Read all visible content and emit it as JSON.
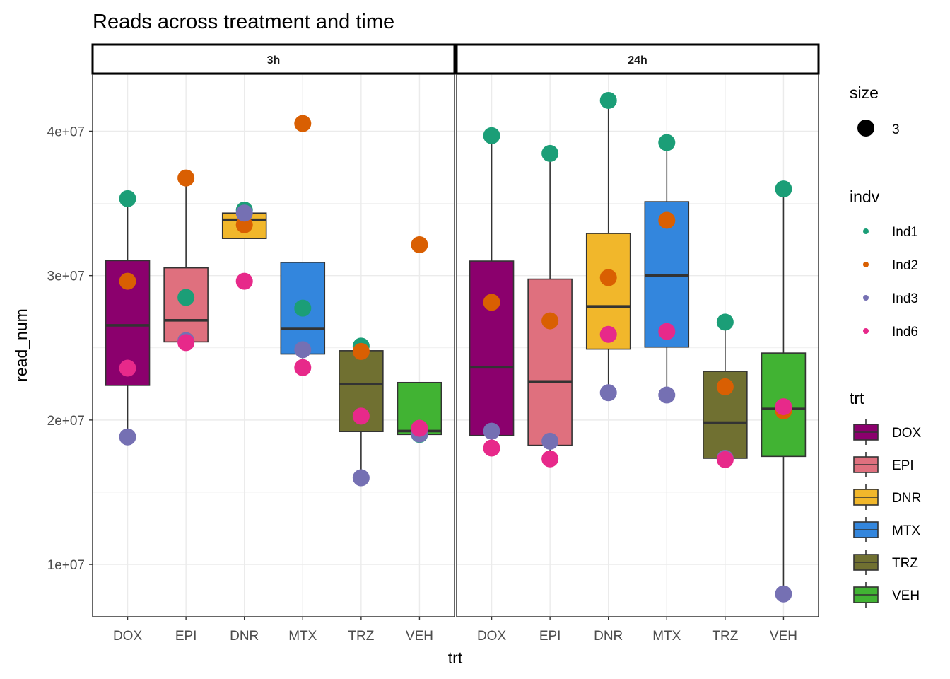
{
  "chart_data": {
    "type": "box",
    "title": "Reads across treatment and time",
    "xlabel": "trt",
    "ylabel": "read_num",
    "ylim": [
      6380000,
      43940000
    ],
    "y_ticks": [
      10000000,
      20000000,
      30000000,
      40000000
    ],
    "y_tick_labels": [
      "1e+07",
      "2e+07",
      "3e+07",
      "4e+07"
    ],
    "y_minor_gridlines": [
      15000000,
      25000000,
      35000000
    ],
    "grid": true,
    "categories": [
      "DOX",
      "EPI",
      "DNR",
      "MTX",
      "TRZ",
      "VEH"
    ],
    "facets": [
      {
        "label": "3h",
        "boxes": [
          {
            "trt": "DOX",
            "q1": 22400000,
            "median": 26560000,
            "q3": 31040000,
            "whisker_low": 18830000,
            "whisker_high": 35330000
          },
          {
            "trt": "EPI",
            "q1": 25410000,
            "median": 26910000,
            "q3": 30540000,
            "whisker_low": 25360000,
            "whisker_high": 36760000
          },
          {
            "trt": "DNR",
            "q1": 32570000,
            "median": 33870000,
            "q3": 34330000,
            "whisker_low": 33520000,
            "whisker_high": 34540000
          },
          {
            "trt": "MTX",
            "q1": 24570000,
            "median": 26310000,
            "q3": 30920000,
            "whisker_low": 23630000,
            "whisker_high": 30920000
          },
          {
            "trt": "TRZ",
            "q1": 19200000,
            "median": 22500000,
            "q3": 24800000,
            "whisker_low": 16000000,
            "whisker_high": 25120000
          },
          {
            "trt": "VEH",
            "q1": 19000000,
            "median": 19240000,
            "q3": 22600000,
            "whisker_low": 19000000,
            "whisker_high": 22600000
          }
        ],
        "points": [
          {
            "trt": "DOX",
            "indv": "Ind1",
            "value": 35330000
          },
          {
            "trt": "DOX",
            "indv": "Ind2",
            "value": 29610000
          },
          {
            "trt": "DOX",
            "indv": "Ind3",
            "value": 18830000
          },
          {
            "trt": "DOX",
            "indv": "Ind6",
            "value": 23590000
          },
          {
            "trt": "EPI",
            "indv": "Ind1",
            "value": 28490000
          },
          {
            "trt": "EPI",
            "indv": "Ind2",
            "value": 36760000
          },
          {
            "trt": "EPI",
            "indv": "Ind3",
            "value": 25500000
          },
          {
            "trt": "EPI",
            "indv": "Ind6",
            "value": 25360000
          },
          {
            "trt": "DNR",
            "indv": "Ind1",
            "value": 34540000
          },
          {
            "trt": "DNR",
            "indv": "Ind2",
            "value": 33520000
          },
          {
            "trt": "DNR",
            "indv": "Ind3",
            "value": 34330000
          },
          {
            "trt": "DNR",
            "indv": "Ind6",
            "value": 29610000
          },
          {
            "trt": "MTX",
            "indv": "Ind1",
            "value": 27750000
          },
          {
            "trt": "MTX",
            "indv": "Ind2",
            "value": 40530000
          },
          {
            "trt": "MTX",
            "indv": "Ind3",
            "value": 24870000
          },
          {
            "trt": "MTX",
            "indv": "Ind6",
            "value": 23630000
          },
          {
            "trt": "TRZ",
            "indv": "Ind1",
            "value": 25120000
          },
          {
            "trt": "TRZ",
            "indv": "Ind2",
            "value": 24750000
          },
          {
            "trt": "TRZ",
            "indv": "Ind3",
            "value": 16000000
          },
          {
            "trt": "TRZ",
            "indv": "Ind6",
            "value": 20270000
          },
          {
            "trt": "VEH",
            "indv": "Ind1",
            "value": 19000000
          },
          {
            "trt": "VEH",
            "indv": "Ind2",
            "value": 32140000
          },
          {
            "trt": "VEH",
            "indv": "Ind3",
            "value": 19030000
          },
          {
            "trt": "VEH",
            "indv": "Ind6",
            "value": 19430000
          }
        ]
      },
      {
        "label": "24h",
        "boxes": [
          {
            "trt": "DOX",
            "q1": 18930000,
            "median": 23650000,
            "q3": 31010000,
            "whisker_low": 18060000,
            "whisker_high": 39690000
          },
          {
            "trt": "EPI",
            "q1": 18250000,
            "median": 22670000,
            "q3": 29760000,
            "whisker_low": 17310000,
            "whisker_high": 38460000
          },
          {
            "trt": "DNR",
            "q1": 24910000,
            "median": 27870000,
            "q3": 32920000,
            "whisker_low": 21890000,
            "whisker_high": 42130000
          },
          {
            "trt": "MTX",
            "q1": 25050000,
            "median": 30000000,
            "q3": 35120000,
            "whisker_low": 21730000,
            "whisker_high": 39210000
          },
          {
            "trt": "TRZ",
            "q1": 17350000,
            "median": 19820000,
            "q3": 23370000,
            "whisker_low": 17260000,
            "whisker_high": 26780000
          },
          {
            "trt": "VEH",
            "q1": 17480000,
            "median": 20770000,
            "q3": 24640000,
            "whisker_low": 7960000,
            "whisker_high": 36000000
          }
        ],
        "points": [
          {
            "trt": "DOX",
            "indv": "Ind1",
            "value": 39690000
          },
          {
            "trt": "DOX",
            "indv": "Ind2",
            "value": 28150000
          },
          {
            "trt": "DOX",
            "indv": "Ind3",
            "value": 19230000
          },
          {
            "trt": "DOX",
            "indv": "Ind6",
            "value": 18060000
          },
          {
            "trt": "EPI",
            "indv": "Ind1",
            "value": 38460000
          },
          {
            "trt": "EPI",
            "indv": "Ind2",
            "value": 26870000
          },
          {
            "trt": "EPI",
            "indv": "Ind3",
            "value": 18530000
          },
          {
            "trt": "EPI",
            "indv": "Ind6",
            "value": 17310000
          },
          {
            "trt": "DNR",
            "indv": "Ind1",
            "value": 42130000
          },
          {
            "trt": "DNR",
            "indv": "Ind2",
            "value": 29860000
          },
          {
            "trt": "DNR",
            "indv": "Ind3",
            "value": 21890000
          },
          {
            "trt": "DNR",
            "indv": "Ind6",
            "value": 25930000
          },
          {
            "trt": "MTX",
            "indv": "Ind1",
            "value": 39210000
          },
          {
            "trt": "MTX",
            "indv": "Ind2",
            "value": 33830000
          },
          {
            "trt": "MTX",
            "indv": "Ind3",
            "value": 21730000
          },
          {
            "trt": "MTX",
            "indv": "Ind6",
            "value": 26130000
          },
          {
            "trt": "TRZ",
            "indv": "Ind1",
            "value": 26780000
          },
          {
            "trt": "TRZ",
            "indv": "Ind2",
            "value": 22300000
          },
          {
            "trt": "TRZ",
            "indv": "Ind3",
            "value": 17350000
          },
          {
            "trt": "TRZ",
            "indv": "Ind6",
            "value": 17260000
          },
          {
            "trt": "VEH",
            "indv": "Ind1",
            "value": 36000000
          },
          {
            "trt": "VEH",
            "indv": "Ind2",
            "value": 20630000
          },
          {
            "trt": "VEH",
            "indv": "Ind3",
            "value": 7960000
          },
          {
            "trt": "VEH",
            "indv": "Ind6",
            "value": 20920000
          }
        ]
      }
    ],
    "legends": {
      "size": {
        "title": "size",
        "entries": [
          {
            "label": "3"
          }
        ]
      },
      "indv": {
        "title": "indv",
        "entries": [
          {
            "label": "Ind1",
            "color": "#1B9E77"
          },
          {
            "label": "Ind2",
            "color": "#D95F02"
          },
          {
            "label": "Ind3",
            "color": "#7570B3"
          },
          {
            "label": "Ind6",
            "color": "#E7298A"
          }
        ]
      },
      "trt": {
        "title": "trt",
        "entries": [
          {
            "label": "DOX",
            "color": "#8B006D"
          },
          {
            "label": "EPI",
            "color": "#DF707E"
          },
          {
            "label": "DNR",
            "color": "#F1B72B"
          },
          {
            "label": "MTX",
            "color": "#3386DD"
          },
          {
            "label": "TRZ",
            "color": "#707031"
          },
          {
            "label": "VEH",
            "color": "#41B333"
          }
        ]
      },
      "placement": "right"
    }
  }
}
